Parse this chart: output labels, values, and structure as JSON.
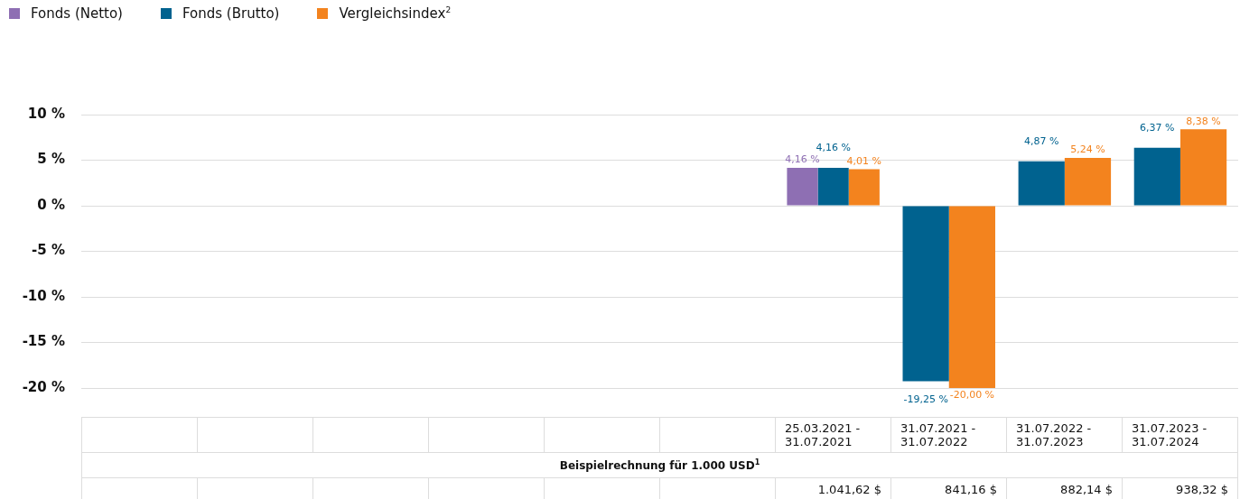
{
  "chart_data": {
    "type": "bar",
    "categories": [
      null,
      null,
      null,
      null,
      null,
      null,
      "25.03.2021 - 31.07.2021",
      "31.07.2021 - 31.07.2022",
      "31.07.2022 - 31.07.2023",
      "31.07.2023 - 31.07.2024"
    ],
    "series": [
      {
        "name": "Fonds (Netto)",
        "color": "#8e6fb3",
        "values": [
          null,
          null,
          null,
          null,
          null,
          null,
          4.16,
          null,
          null,
          null
        ],
        "value_labels": [
          null,
          null,
          null,
          null,
          null,
          null,
          "4,16 %",
          null,
          null,
          null
        ]
      },
      {
        "name": "Fonds (Brutto)",
        "color": "#00628f",
        "values": [
          null,
          null,
          null,
          null,
          null,
          null,
          4.16,
          -19.25,
          4.87,
          6.37
        ],
        "value_labels": [
          null,
          null,
          null,
          null,
          null,
          null,
          "4,16 %",
          "-19,25 %",
          "4,87 %",
          "6,37 %"
        ]
      },
      {
        "name": "Vergleichsindex$^{2}$",
        "color": "#f3831e",
        "values": [
          null,
          null,
          null,
          null,
          null,
          null,
          4.01,
          -20.0,
          5.24,
          8.38
        ],
        "value_labels": [
          null,
          null,
          null,
          null,
          null,
          null,
          "4,01 %",
          "-20,00 %",
          "5,24 %",
          "8,38 %"
        ]
      }
    ],
    "ylim": [
      -20,
      10
    ],
    "yticks": [
      {
        "value": -20,
        "label": "-20 %"
      },
      {
        "value": -15,
        "label": "-15 %"
      },
      {
        "value": -10,
        "label": "-10 %"
      },
      {
        "value": -5,
        "label": "-5 %"
      },
      {
        "value": 0,
        "label": "0 %"
      },
      {
        "value": 5,
        "label": "5 %"
      },
      {
        "value": 10,
        "label": "10 %"
      }
    ],
    "grid": "y",
    "legend": "top left",
    "annotations": [
      "Beispielrechnung für 1.000 USD$^{1}$",
      "1.041,62 $",
      "841,16 $",
      "882,14 $",
      "938,32 $"
    ]
  }
}
